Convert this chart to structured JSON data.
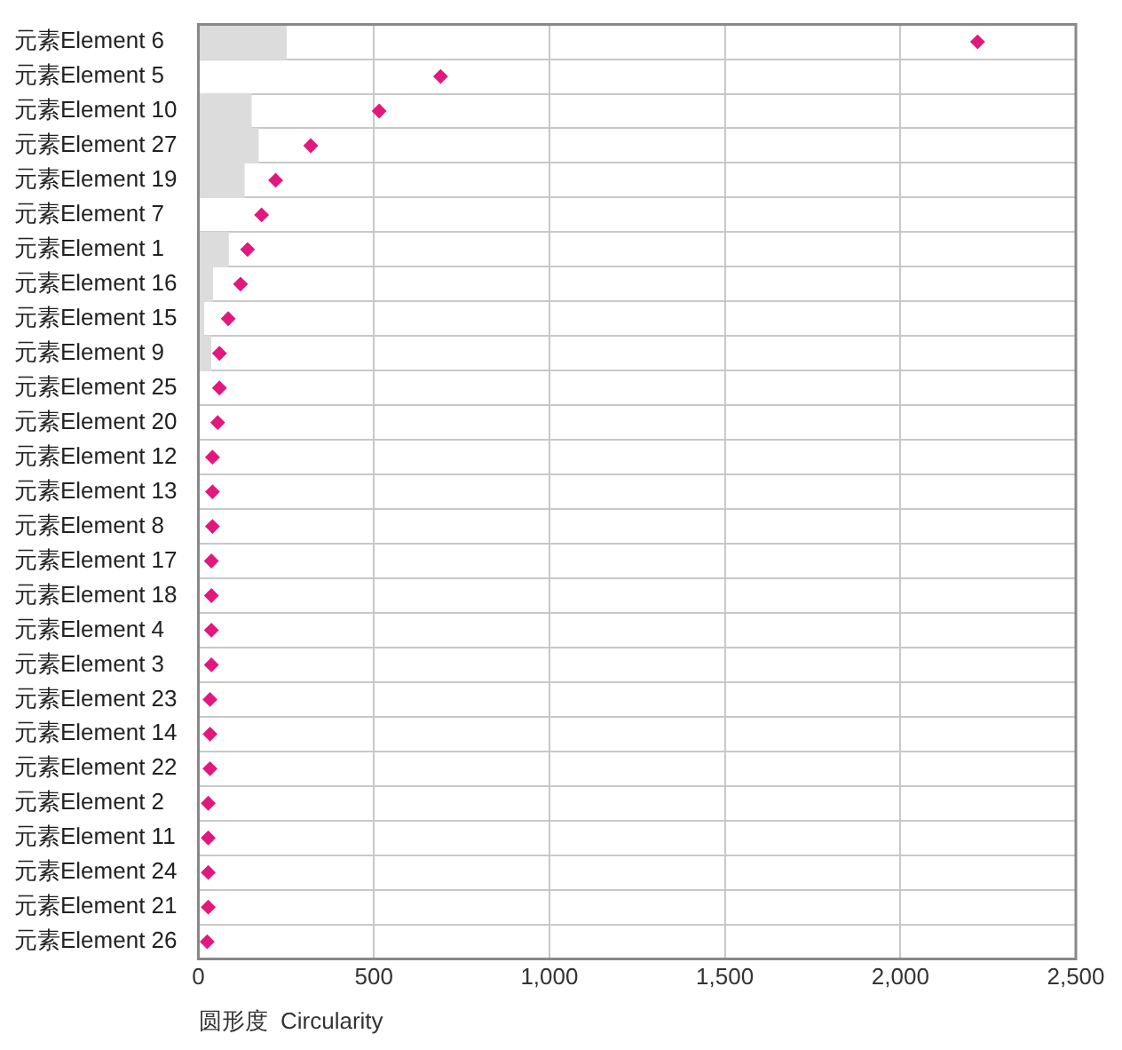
{
  "chart_data": {
    "type": "bar",
    "orientation": "horizontal",
    "xlabel": "圆形度  Circularity",
    "categories": [
      "元素Element 6",
      "元素Element 5",
      "元素Element 10",
      "元素Element 27",
      "元素Element 19",
      "元素Element 7",
      "元素Element 1",
      "元素Element 16",
      "元素Element 15",
      "元素Element 9",
      "元素Element 25",
      "元素Element 20",
      "元素Element 12",
      "元素Element 13",
      "元素Element 8",
      "元素Element 17",
      "元素Element 18",
      "元素Element 4",
      "元素Element 3",
      "元素Element 23",
      "元素Element 14",
      "元素Element 22",
      "元素Element 2",
      "元素Element 11",
      "元素Element 24",
      "元素Element 21",
      "元素Element 26"
    ],
    "series": [
      {
        "color": "#dcdcdc",
        "values": [
          250,
          0,
          150,
          170,
          130,
          0,
          85,
          40,
          15,
          35,
          null,
          null,
          0,
          0,
          0,
          0,
          0,
          0,
          0,
          0,
          0,
          0,
          0,
          0,
          0,
          0,
          0
        ]
      },
      {
        "type": "scatter",
        "color": "#e2187e",
        "values": [
          2220,
          690,
          515,
          320,
          220,
          180,
          140,
          120,
          85,
          60,
          60,
          55,
          40,
          40,
          40,
          37,
          37,
          37,
          37,
          33,
          33,
          33,
          28,
          28,
          28,
          28,
          25
        ]
      }
    ],
    "xlim": [
      0,
      2500
    ],
    "xticks": [
      0,
      500,
      {
        "value": 1000,
        "label": "1,000"
      },
      {
        "value": 1500,
        "label": "1,500"
      },
      {
        "value": 2000,
        "label": "2,000"
      },
      {
        "value": 2500,
        "label": "2,500"
      }
    ],
    "grid": true,
    "marker": "diamond"
  }
}
